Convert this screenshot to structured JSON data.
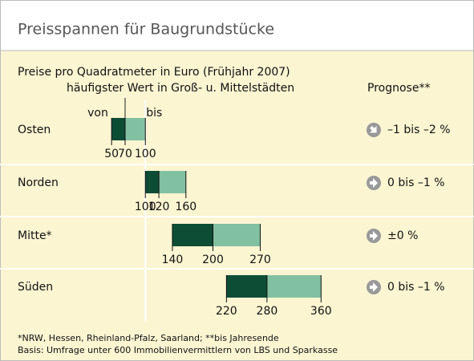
{
  "chart_data": {
    "type": "range",
    "title": "Preisspannen für Baugrundstücke",
    "subtitle": "Preise pro Quadratmeter in Euro (Frühjahr 2007)",
    "mode_label": "häufigster Wert in Groß- u. Mittelstädten",
    "forecast_label": "Prognose**",
    "low_label": "von",
    "high_label": "bis",
    "categories": [
      "Osten",
      "Norden",
      "Mitte*",
      "Süden"
    ],
    "low": [
      50,
      100,
      140,
      220
    ],
    "mode": [
      70,
      120,
      200,
      280
    ],
    "high": [
      100,
      160,
      270,
      360
    ],
    "low_color": "#0d4d35",
    "high_color": "#82c0a2",
    "xlim": [
      0,
      400
    ],
    "forecast": [
      "–1 bis –2 %",
      "0 bis –1 %",
      "±0 %",
      "0 bis –1 %"
    ],
    "forecast_direction": [
      "down",
      "right",
      "right",
      "right"
    ],
    "notes": [
      "*NRW, Hessen, Rheinland-Pfalz, Saarland; **bis Jahresende",
      "Basis: Umfrage unter 600 Immobilienvermittlern von LBS und Sparkasse"
    ]
  }
}
